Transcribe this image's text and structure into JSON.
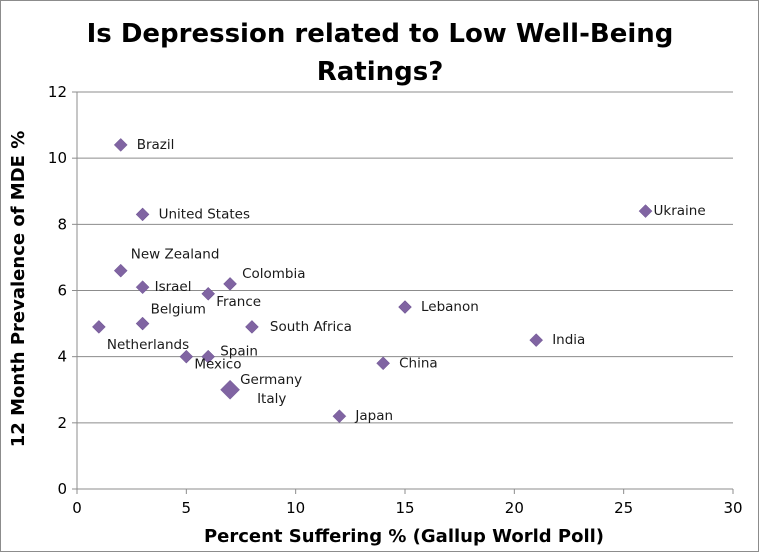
{
  "chart_data": {
    "type": "scatter",
    "title_lines": [
      "Is Depression related to Low Well-Being",
      "Ratings?"
    ],
    "xlabel": "Percent Suffering % (Gallup World Poll)",
    "ylabel": "12 Month Prevalence of MDE %",
    "xlim": [
      0,
      30
    ],
    "ylim": [
      0,
      12
    ],
    "x_ticks": [
      0,
      5,
      10,
      15,
      20,
      25,
      30
    ],
    "y_ticks": [
      0,
      2,
      4,
      6,
      8,
      10,
      12
    ],
    "grid": "horizontal",
    "legend": "none",
    "marker": "diamond",
    "marker_color": "#8064A2",
    "points": [
      {
        "label": "Brazil",
        "x": 2,
        "y": 10.4
      },
      {
        "label": "United States",
        "x": 3,
        "y": 8.3
      },
      {
        "label": "Ukraine",
        "x": 26,
        "y": 8.4
      },
      {
        "label": "New Zealand",
        "x": 2,
        "y": 6.6
      },
      {
        "label": "Israel",
        "x": 3,
        "y": 6.1
      },
      {
        "label": "Colombia",
        "x": 7,
        "y": 6.2
      },
      {
        "label": "France",
        "x": 6,
        "y": 5.9
      },
      {
        "label": "Lebanon",
        "x": 15,
        "y": 5.5
      },
      {
        "label": "Belgium",
        "x": 3,
        "y": 5.0
      },
      {
        "label": "Netherlands",
        "x": 1,
        "y": 4.9
      },
      {
        "label": "South Africa",
        "x": 8,
        "y": 4.9
      },
      {
        "label": "India",
        "x": 21,
        "y": 4.5
      },
      {
        "label": "Spain",
        "x": 6,
        "y": 4.0
      },
      {
        "label": "Mexico",
        "x": 5,
        "y": 4.0
      },
      {
        "label": "China",
        "x": 14,
        "y": 3.8
      },
      {
        "label": "Germany",
        "x": 7,
        "y": 3.0
      },
      {
        "label": "Italy",
        "x": 7,
        "y": 3.0
      },
      {
        "label": "Japan",
        "x": 12,
        "y": 2.2
      }
    ]
  }
}
